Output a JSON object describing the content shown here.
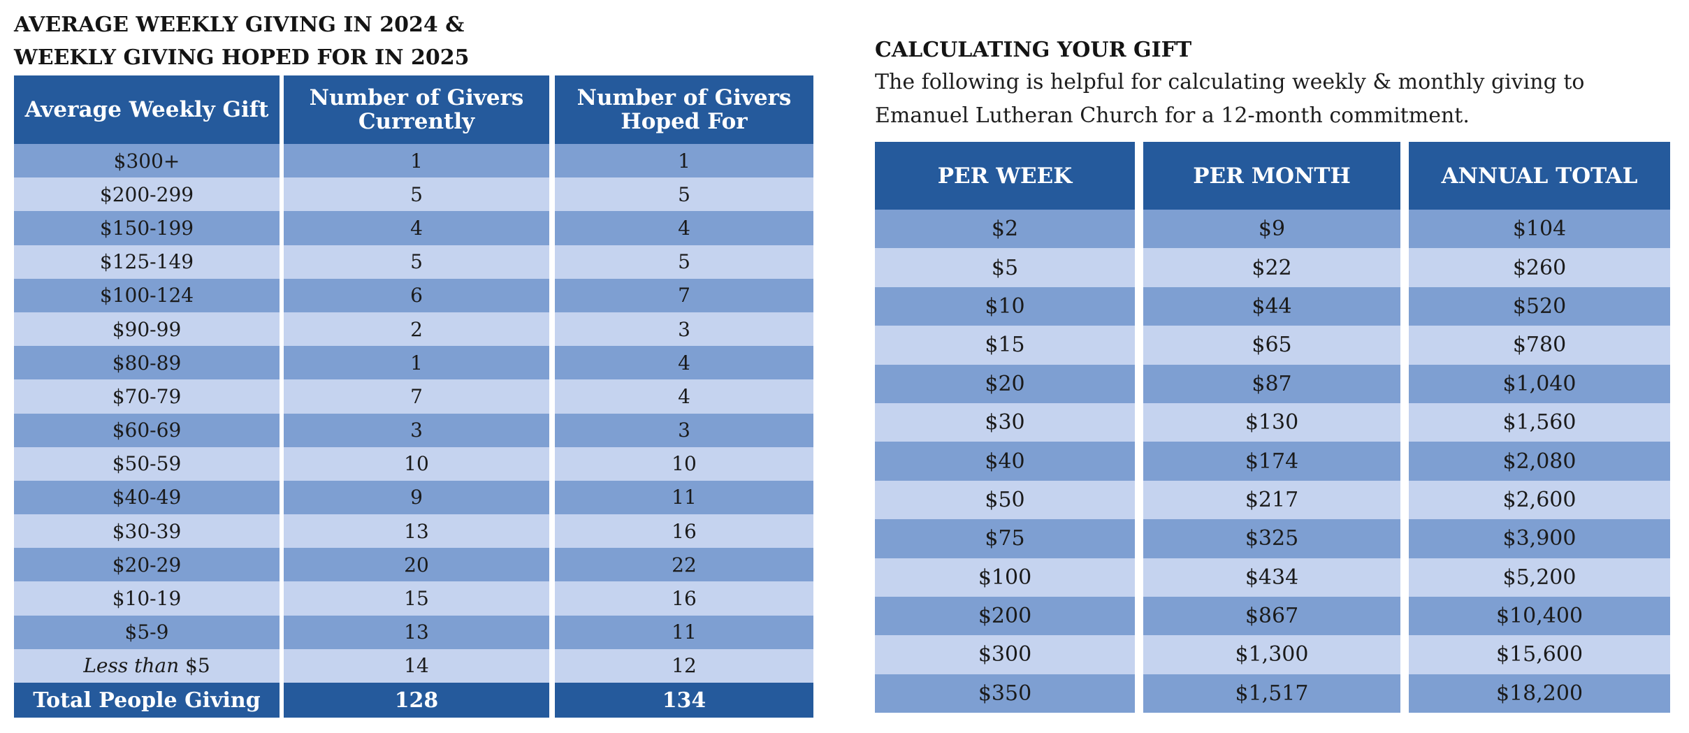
{
  "left_section": {
    "title_line1": "AVERAGE WEEKLY GIVING IN 2024 &",
    "title_line2": "WEEKLY GIVING HOPED FOR IN 2025",
    "headers": [
      "Average Weekly Gift",
      "Number of Givers Currently",
      "Number of Givers Hoped For"
    ],
    "rows": [
      {
        "gift": "$300+",
        "current": "1",
        "hoped": "1"
      },
      {
        "gift": "$200-299",
        "current": "5",
        "hoped": "5"
      },
      {
        "gift": "$150-199",
        "current": "4",
        "hoped": "4"
      },
      {
        "gift": "$125-149",
        "current": "5",
        "hoped": "5"
      },
      {
        "gift": "$100-124",
        "current": "6",
        "hoped": "7"
      },
      {
        "gift": "$90-99",
        "current": "2",
        "hoped": "3"
      },
      {
        "gift": "$80-89",
        "current": "1",
        "hoped": "4"
      },
      {
        "gift": "$70-79",
        "current": "7",
        "hoped": "4"
      },
      {
        "gift": "$60-69",
        "current": "3",
        "hoped": "3"
      },
      {
        "gift": "$50-59",
        "current": "10",
        "hoped": "10"
      },
      {
        "gift": "$40-49",
        "current": "9",
        "hoped": "11"
      },
      {
        "gift": "$30-39",
        "current": "13",
        "hoped": "16"
      },
      {
        "gift": "$20-29",
        "current": "20",
        "hoped": "22"
      },
      {
        "gift": "$10-19",
        "current": "15",
        "hoped": "16"
      },
      {
        "gift": "$5-9",
        "current": "13",
        "hoped": "11"
      },
      {
        "gift_prefix": "Less than",
        "gift": "$5",
        "current": "14",
        "hoped": "12"
      }
    ],
    "total": {
      "label": "Total People Giving",
      "current": "128",
      "hoped": "134"
    }
  },
  "right_section": {
    "title": "CALCULATING YOUR GIFT",
    "intro_line1": "The following is helpful for calculating weekly & monthly giving to",
    "intro_line2": "Emanuel Lutheran Church for a 12-month commitment.",
    "headers": [
      "PER WEEK",
      "PER MONTH",
      "ANNUAL TOTAL"
    ],
    "rows": [
      {
        "week": "$2",
        "month": "$9",
        "annual": "$104"
      },
      {
        "week": "$5",
        "month": "$22",
        "annual": "$260"
      },
      {
        "week": "$10",
        "month": "$44",
        "annual": "$520"
      },
      {
        "week": "$15",
        "month": "$65",
        "annual": "$780"
      },
      {
        "week": "$20",
        "month": "$87",
        "annual": "$1,040"
      },
      {
        "week": "$30",
        "month": "$130",
        "annual": "$1,560"
      },
      {
        "week": "$40",
        "month": "$174",
        "annual": "$2,080"
      },
      {
        "week": "$50",
        "month": "$217",
        "annual": "$2,600"
      },
      {
        "week": "$75",
        "month": "$325",
        "annual": "$3,900"
      },
      {
        "week": "$100",
        "month": "$434",
        "annual": "$5,200"
      },
      {
        "week": "$200",
        "month": "$867",
        "annual": "$10,400"
      },
      {
        "week": "$300",
        "month": "$1,300",
        "annual": "$15,600"
      },
      {
        "week": "$350",
        "month": "$1,517",
        "annual": "$18,200"
      }
    ]
  },
  "colors": {
    "header_blue": "#255a9c",
    "row_dark": "#7e9fd2",
    "row_light": "#c5d3ef"
  }
}
